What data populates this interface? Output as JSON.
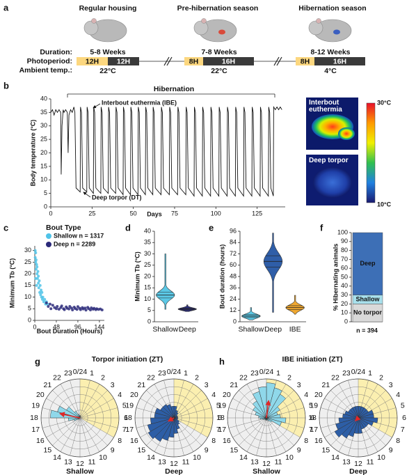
{
  "panel_labels": [
    "a",
    "b",
    "c",
    "d",
    "e",
    "f",
    "g",
    "h"
  ],
  "panel_a": {
    "row_labels": [
      "Duration:",
      "Photoperiod:",
      "Ambient temp.:"
    ],
    "stages": [
      {
        "title": "Regular housing",
        "duration": "5-8 Weeks",
        "light": "12H",
        "dark": "12H",
        "temperature": "22°C"
      },
      {
        "title": "Pre-hibernation season",
        "duration": "7-8 Weeks",
        "light": "8H",
        "dark": "16H",
        "temperature": "22°C"
      },
      {
        "title": "Hibernation season",
        "duration": "8-12 Weeks",
        "light": "8H",
        "dark": "16H",
        "temperature": "4°C"
      }
    ]
  },
  "thermal_images": {
    "labels": [
      "Interbout euthermia",
      "Deep torpor"
    ],
    "scale_max": "30°C",
    "scale_min": "10°C"
  },
  "chart_data": [
    {
      "type": "line",
      "xlabel": "Days",
      "ylabel": "Body temperature (°C)",
      "annotations": [
        "Hibernation",
        "Interbout euthermia (IBE)",
        "Deep torpor (DT)"
      ],
      "xlim": [
        0,
        142
      ],
      "ylim": [
        0,
        40
      ],
      "xticks": [
        0,
        25,
        50,
        75,
        100,
        125
      ],
      "yticks": [
        0,
        5,
        10,
        15,
        20,
        25,
        30,
        35,
        40
      ],
      "x": [
        0,
        1,
        2,
        3,
        4,
        5,
        6,
        6.3,
        6.8,
        7.5,
        8,
        9,
        10,
        10.5,
        11,
        12,
        13,
        14,
        14.6,
        15.3,
        17.8,
        18,
        18.6,
        19.3,
        21.8,
        22,
        22.6,
        23.3,
        25.8,
        26,
        26.6,
        27.3,
        30.3,
        30.5,
        31.1,
        31.8,
        34.8,
        35,
        35.6,
        36.3,
        39.3,
        39.5,
        40.1,
        40.8,
        43.8,
        44,
        44.6,
        45.3,
        48.3,
        48.5,
        49.1,
        49.8,
        52.8,
        53,
        53.6,
        54.3,
        57.3,
        57.5,
        58.1,
        58.8,
        61.8,
        62,
        62.6,
        63.3,
        66.8,
        67,
        67.6,
        68.3,
        71.8,
        72,
        72.6,
        73.3,
        76.8,
        77,
        77.6,
        78.3,
        81.8,
        82,
        82.6,
        83.3,
        86.8,
        87,
        87.6,
        88.3,
        91.8,
        92,
        92.6,
        93.3,
        96.8,
        97,
        97.6,
        98.3,
        101.8,
        102,
        102.6,
        103.3,
        106.8,
        107,
        107.6,
        108.3,
        111.8,
        112,
        112.6,
        113.3,
        116.8,
        117,
        117.6,
        118.3,
        121.8,
        122,
        122.6,
        123.3,
        126.8,
        127,
        127.6,
        128.3,
        131.8,
        132,
        132.6,
        133.3,
        134.8,
        135,
        136,
        137,
        138,
        139,
        140
      ],
      "series": [
        {
          "color": "#111111",
          "values": [
            35,
            36,
            34,
            36,
            35,
            36,
            35,
            12,
            30,
            36,
            35,
            36,
            35,
            20,
            34,
            36,
            35,
            37,
            35,
            7,
            5.5,
            37,
            35,
            7,
            5.5,
            37,
            35,
            7,
            5,
            37,
            35,
            7,
            5,
            37,
            35,
            7,
            5,
            37,
            35,
            7,
            5,
            37,
            35,
            7,
            4.5,
            37,
            35,
            7,
            4.5,
            37,
            35,
            7,
            4.5,
            37,
            35,
            7,
            4.5,
            37,
            35,
            7,
            4.5,
            37,
            35,
            7,
            4.5,
            37,
            35,
            7,
            4.5,
            37,
            35,
            7,
            4.5,
            37,
            35,
            7,
            4.5,
            37,
            35,
            7,
            4,
            37,
            35,
            7,
            4,
            37,
            35,
            7,
            4,
            37,
            35,
            7,
            4,
            37,
            35,
            7,
            4,
            37,
            35,
            7,
            4,
            37,
            35,
            7,
            4,
            37,
            35,
            7,
            4,
            37,
            35,
            7,
            4,
            37,
            35,
            7,
            4,
            37,
            35,
            7,
            4,
            37,
            36,
            37,
            36,
            37,
            36
          ]
        }
      ]
    },
    {
      "type": "scatter",
      "xlabel": "Bout Duration (Hours)",
      "ylabel": "Minimum Tb (°C)",
      "legend_title": "Bout Type",
      "xlim": [
        0,
        155
      ],
      "ylim": [
        0,
        32
      ],
      "xticks": [
        0,
        48,
        96,
        144
      ],
      "yticks": [
        0,
        5,
        10,
        15,
        20,
        25,
        30
      ],
      "series": [
        {
          "name": "Shallow n = 1317",
          "color": "#4fc3e8",
          "x": [
            1,
            1,
            2,
            2,
            3,
            3,
            4,
            5,
            5,
            6,
            7,
            8,
            8,
            9,
            10,
            11,
            12,
            13,
            14,
            15,
            16,
            17,
            18,
            20,
            22,
            24,
            26,
            28,
            2,
            4
          ],
          "values": [
            30,
            27,
            29,
            25,
            26,
            22,
            24,
            20,
            23,
            18,
            21,
            16,
            19,
            14,
            17,
            12,
            15,
            11,
            13,
            10,
            12,
            9,
            10,
            8,
            9,
            7,
            8,
            7,
            18,
            15
          ]
        },
        {
          "name": "Deep n = 2289",
          "color": "#2b2a7a",
          "x": [
            30,
            36,
            40,
            44,
            48,
            50,
            54,
            58,
            60,
            64,
            66,
            70,
            72,
            76,
            78,
            82,
            84,
            88,
            90,
            94,
            96,
            100,
            102,
            106,
            108,
            112,
            114,
            118,
            120,
            124,
            126,
            130,
            132,
            136,
            138,
            142,
            146,
            150,
            34,
            26
          ],
          "values": [
            6,
            5,
            6.5,
            5.5,
            5,
            6,
            4.8,
            5.5,
            6.2,
            5,
            4.6,
            5.8,
            5.2,
            4.9,
            6,
            5.3,
            4.5,
            5.7,
            5.1,
            4.7,
            5.9,
            5.2,
            4.6,
            5.5,
            4.9,
            5.3,
            4.4,
            5.6,
            5,
            4.5,
            5.4,
            4.8,
            5.2,
            4.6,
            5,
            4.7,
            4.9,
            4.5,
            7,
            7.5
          ]
        }
      ]
    },
    {
      "type": "violin",
      "ylabel": "Minimum Tb (°C)",
      "categories": [
        "Shallow",
        "Deep"
      ],
      "colors": [
        "#5bc8e6",
        "#2c2e7a"
      ],
      "ylim": [
        0,
        40
      ],
      "yticks": [
        0,
        5,
        10,
        15,
        20,
        25,
        30,
        35,
        40
      ],
      "min": [
        5.5,
        4.5
      ],
      "q1": [
        10.5,
        5.2
      ],
      "median": [
        11.8,
        5.6
      ],
      "q3": [
        13,
        6
      ],
      "max": [
        30,
        7.5
      ]
    },
    {
      "type": "violin",
      "ylabel": "Bout duration (hours)",
      "categories": [
        "Shallow",
        "Deep",
        "IBE"
      ],
      "colors": [
        "#5bc8e6",
        "#2f5ea8",
        "#f0a830"
      ],
      "ylim": [
        0,
        96
      ],
      "yticks": [
        0,
        12,
        24,
        36,
        48,
        60,
        72,
        84,
        96
      ],
      "min": [
        2,
        10,
        8
      ],
      "q1": [
        4.5,
        58,
        13
      ],
      "median": [
        6,
        64,
        15
      ],
      "q3": [
        7.5,
        70,
        17
      ],
      "max": [
        15,
        94,
        28
      ]
    },
    {
      "type": "stacked_bar",
      "ylabel": "% Hibernating animals",
      "categories": [
        null
      ],
      "annotation": "n = 394",
      "ylim": [
        0,
        100
      ],
      "yticks": [
        0,
        10,
        20,
        30,
        40,
        50,
        60,
        70,
        80,
        90,
        100
      ],
      "series": [
        {
          "name": "No torpor",
          "color": "#d9d9d9",
          "values": [
            20
          ]
        },
        {
          "name": "Shallow",
          "color": "#a8e0ec",
          "values": [
            10
          ]
        },
        {
          "name": "Deep",
          "color": "#3d6fb6",
          "values": [
            70
          ]
        }
      ]
    },
    {
      "type": "polar_bar",
      "title": "Torpor initiation (ZT)",
      "subtitle": "Shallow",
      "color": "#8fd8ea",
      "light_phase": [
        0,
        8
      ],
      "light_color": "#fbefb0",
      "rlim": [
        0,
        5
      ],
      "arrow_color": "#e02828",
      "mean_hour": 18.8,
      "mean_length": 2.6,
      "categories": [
        "0/24",
        "1",
        "2",
        "3",
        "4",
        "5",
        "6",
        "7",
        "8",
        "9",
        "10",
        "11",
        "12",
        "13",
        "14",
        "15",
        "16",
        "17",
        "18",
        "19",
        "20",
        "21",
        "22",
        "23"
      ],
      "values": [
        0.3,
        0,
        0,
        0,
        0,
        0,
        0,
        0,
        0,
        0,
        0,
        0,
        0,
        0,
        0,
        0.3,
        0.8,
        1.5,
        3.8,
        3,
        2,
        1,
        0.5,
        0.3
      ]
    },
    {
      "type": "polar_bar",
      "subtitle": "Deep",
      "color": "#2d5ea6",
      "light_phase": [
        0,
        8
      ],
      "light_color": "#fbefb0",
      "rlim": [
        0,
        5
      ],
      "arrow_color": "#e02828",
      "mean_hour": 16,
      "mean_length": 0.8,
      "categories": [
        "0/24",
        "1",
        "2",
        "3",
        "4",
        "5",
        "6",
        "7",
        "8",
        "9",
        "10",
        "11",
        "12",
        "13",
        "14",
        "15",
        "16",
        "17",
        "18",
        "19",
        "20",
        "21",
        "22",
        "23"
      ],
      "values": [
        1.5,
        1,
        0.8,
        0.5,
        0.5,
        0.5,
        0.5,
        0.5,
        0.8,
        1,
        1.5,
        2,
        2.5,
        3,
        3.5,
        3.8,
        3.5,
        3,
        2.5,
        2.5,
        2,
        2,
        1.8,
        1.5
      ]
    },
    {
      "type": "polar_bar",
      "title": "IBE initiation (ZT)",
      "subtitle": "Shallow",
      "color": "#8fd8ea",
      "light_phase": [
        0,
        8
      ],
      "light_color": "#fbefb0",
      "rlim": [
        0,
        5
      ],
      "arrow_color": "#e02828",
      "mean_hour": 0.5,
      "mean_length": 2.2,
      "categories": [
        "0/24",
        "1",
        "2",
        "3",
        "4",
        "5",
        "6",
        "7",
        "8",
        "9",
        "10",
        "11",
        "12",
        "13",
        "14",
        "15",
        "16",
        "17",
        "18",
        "19",
        "20",
        "21",
        "22",
        "23"
      ],
      "values": [
        4.5,
        4,
        3.5,
        2,
        1.5,
        1.8,
        2.5,
        2,
        0.8,
        0.5,
        0.3,
        0.3,
        0.3,
        0.3,
        0.3,
        0.3,
        0.5,
        0.8,
        1,
        1.5,
        2,
        2.5,
        3.5,
        4
      ]
    },
    {
      "type": "polar_bar",
      "subtitle": "Deep",
      "color": "#2d5ea6",
      "light_phase": [
        0,
        8
      ],
      "light_color": "#fbefb0",
      "rlim": [
        0,
        5
      ],
      "arrow_color": "#e02828",
      "mean_hour": 15,
      "mean_length": 0.5,
      "categories": [
        "0/24",
        "1",
        "2",
        "3",
        "4",
        "5",
        "6",
        "7",
        "8",
        "9",
        "10",
        "11",
        "12",
        "13",
        "14",
        "15",
        "16",
        "17",
        "18",
        "19",
        "20",
        "21",
        "22",
        "23"
      ],
      "values": [
        1.5,
        1.5,
        1.5,
        1.5,
        2,
        2,
        2.5,
        2,
        1.5,
        1.5,
        1.5,
        2,
        2,
        2.5,
        3,
        3.5,
        3,
        2.5,
        2,
        1.8,
        1.5,
        1.5,
        1.5,
        1.5
      ]
    }
  ]
}
